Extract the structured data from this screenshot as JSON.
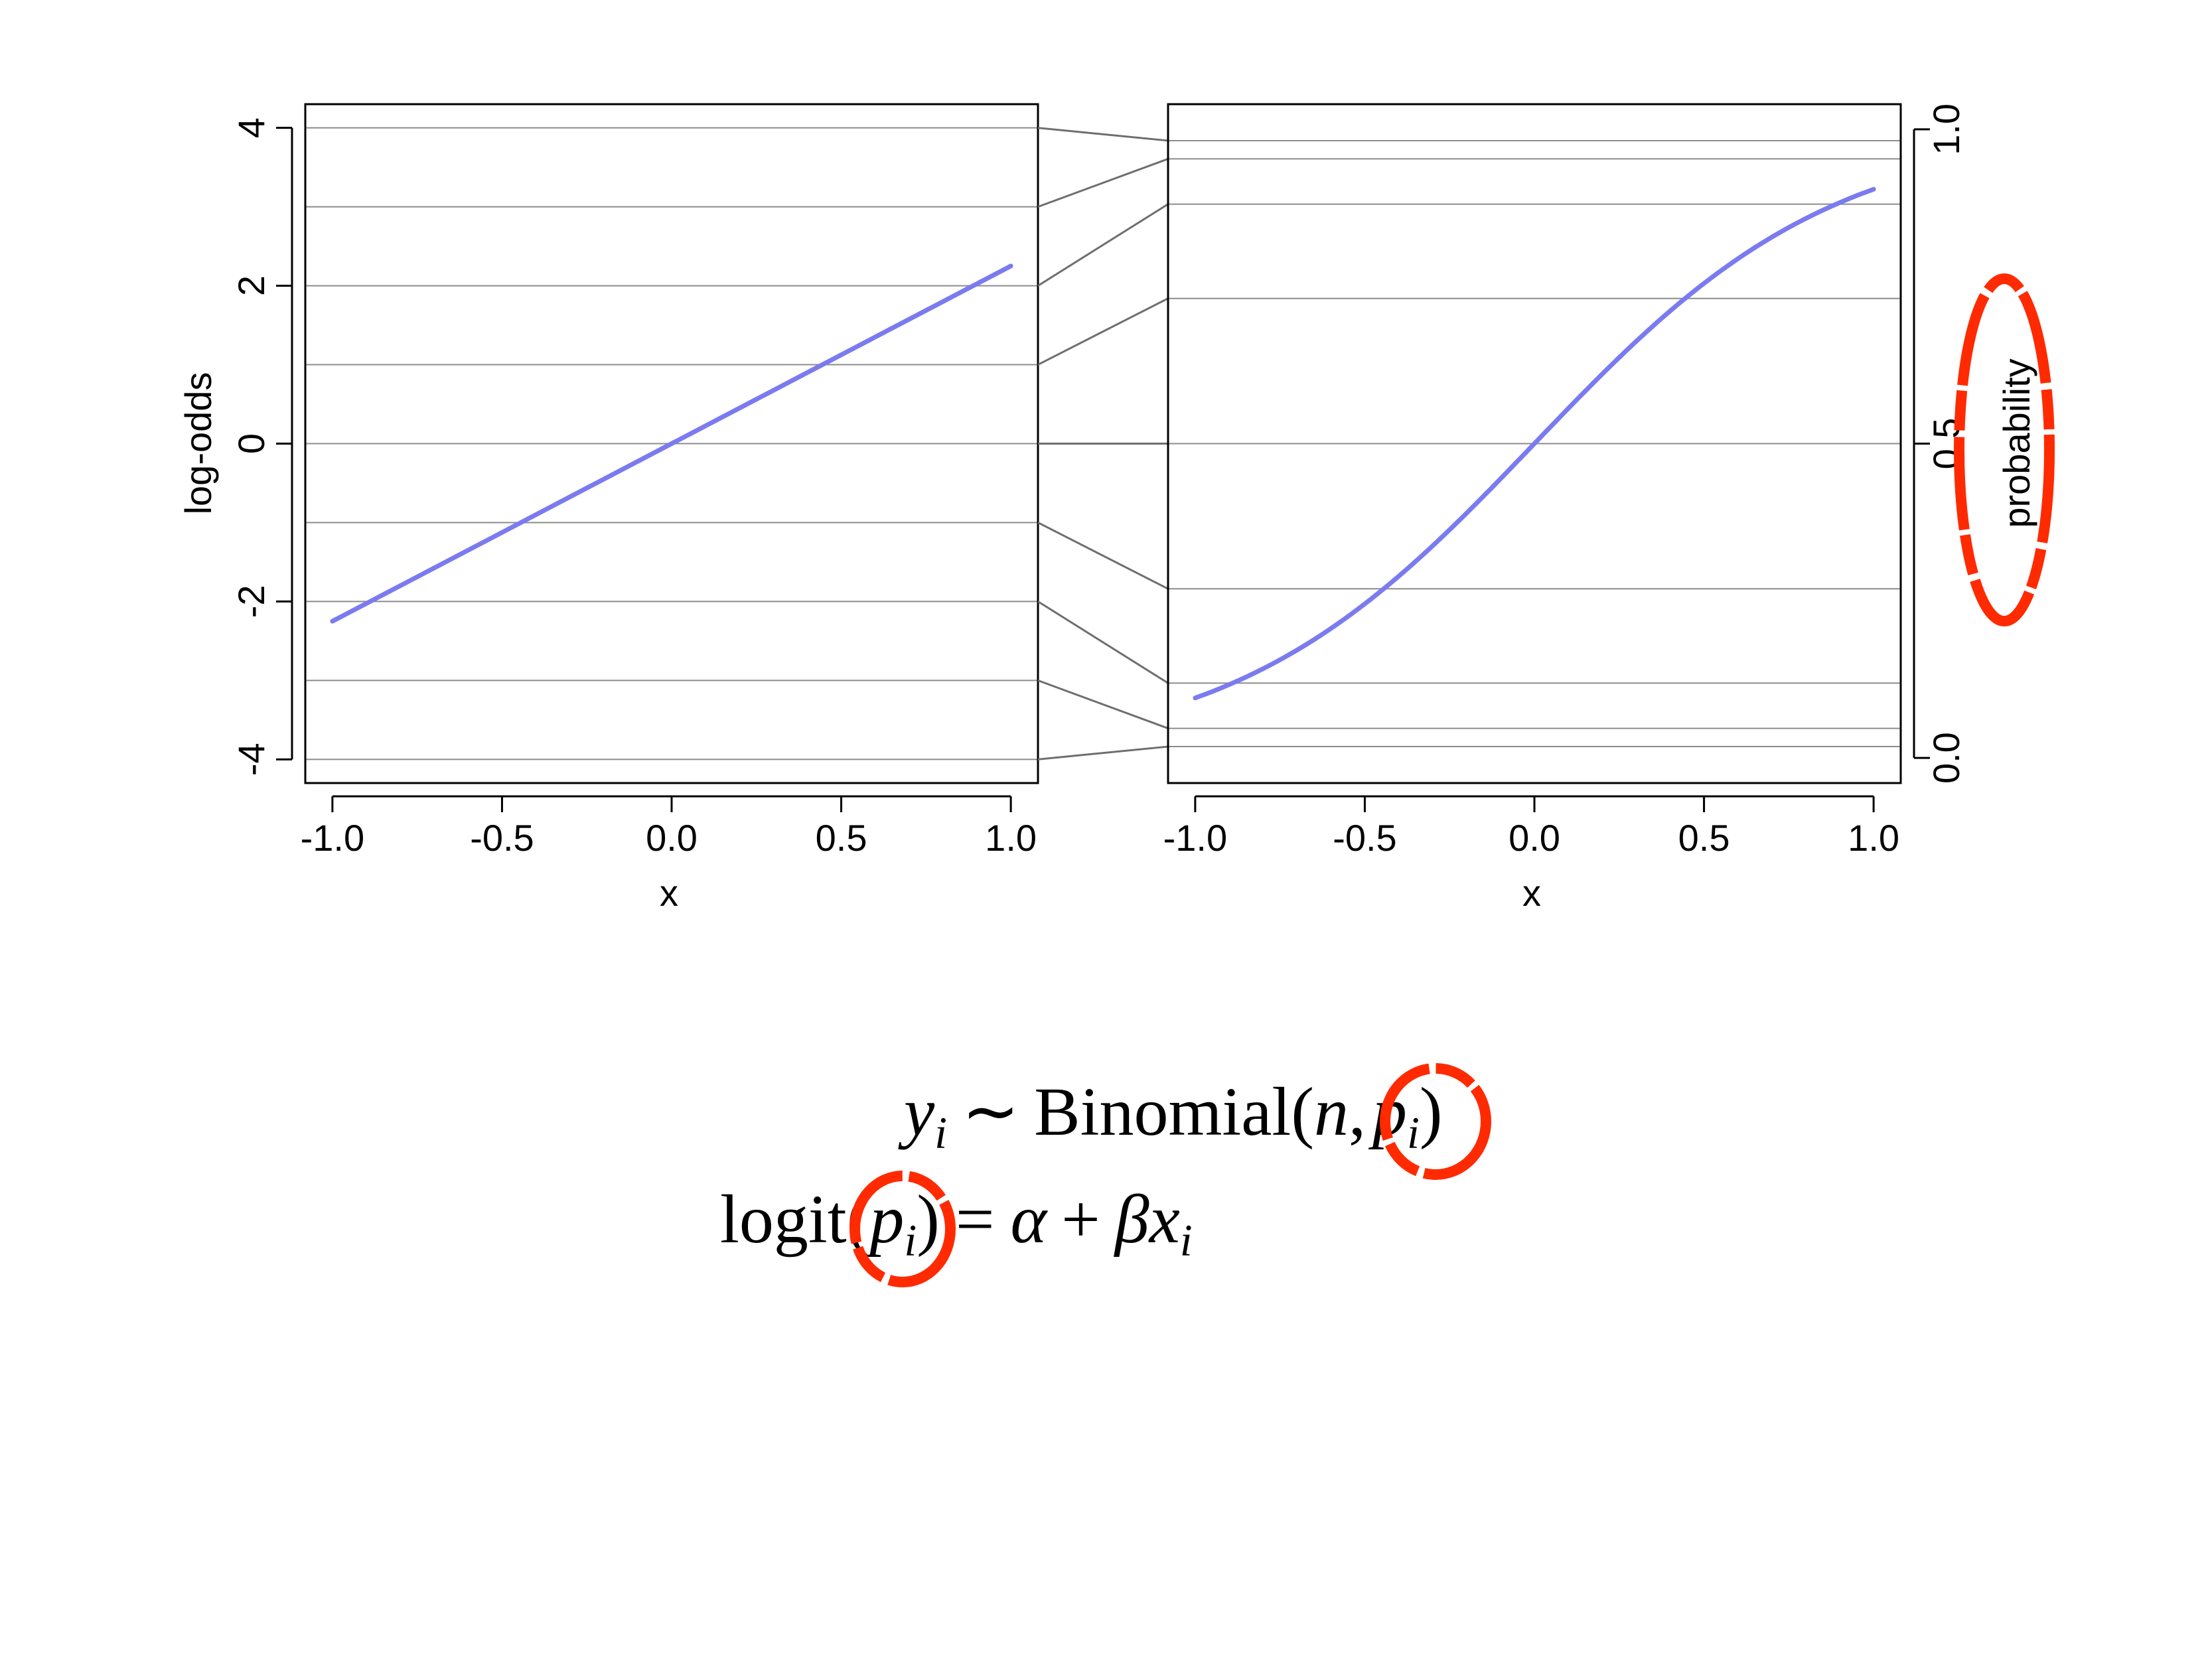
{
  "chart_data": [
    {
      "type": "line",
      "xlabel": "x",
      "ylabel": "log-odds",
      "xlim": [
        -1.08,
        1.08
      ],
      "ylim": [
        -4.3,
        4.3
      ],
      "x_ticks": [
        "-1.0",
        "-0.5",
        "0.0",
        "0.5",
        "1.0"
      ],
      "y_ticks": [
        "-4",
        "-2",
        "0",
        "2",
        "4"
      ],
      "gridlines_y": [
        -4,
        -3,
        -2,
        -1,
        0,
        1,
        2,
        3,
        4
      ],
      "series": [
        {
          "x": [
            -1.0,
            1.0
          ],
          "y": [
            -2.25,
            2.25
          ]
        }
      ]
    },
    {
      "type": "line",
      "xlabel": "x",
      "ylabel": "probability",
      "ylabel_side": "right",
      "xlim": [
        -1.08,
        1.08
      ],
      "ylim": [
        -0.04,
        1.04
      ],
      "x_ticks": [
        "-1.0",
        "-0.5",
        "0.0",
        "0.5",
        "1.0"
      ],
      "y_ticks": [
        "0.0",
        "0.5",
        "1.0"
      ],
      "gridlines_prob": [
        0.018,
        0.047,
        0.119,
        0.269,
        0.5,
        0.731,
        0.881,
        0.953,
        0.982
      ],
      "series": [
        {
          "function": "inv_logit(2.25 * x)",
          "x_range": [
            -1.0,
            1.0
          ]
        }
      ]
    }
  ],
  "equations": {
    "line1": {
      "y": "y",
      "i": "i",
      "sim": "∼",
      "fn": "Binomial(",
      "n": "n",
      "comma": ",",
      "p": "p",
      "close": ")"
    },
    "line2": {
      "fn": "logit(",
      "p": "p",
      "i": "i",
      "close": ")",
      "eq": "=",
      "alpha": "α",
      "plus": "+",
      "beta": "β",
      "x": "x"
    }
  },
  "highlight_color": "#ff2a00",
  "curve_color": "#7b7bf0",
  "grid_color": "#8c8c8c"
}
